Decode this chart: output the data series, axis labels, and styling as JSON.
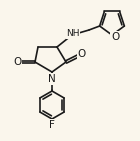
{
  "bg_color": "#faf6ec",
  "bond_color": "#1a1a1a",
  "atom_colors": {
    "O": "#1a1a1a",
    "N": "#1a1a1a",
    "F": "#1a1a1a"
  },
  "fig_width": 1.4,
  "fig_height": 1.41,
  "dpi": 100
}
